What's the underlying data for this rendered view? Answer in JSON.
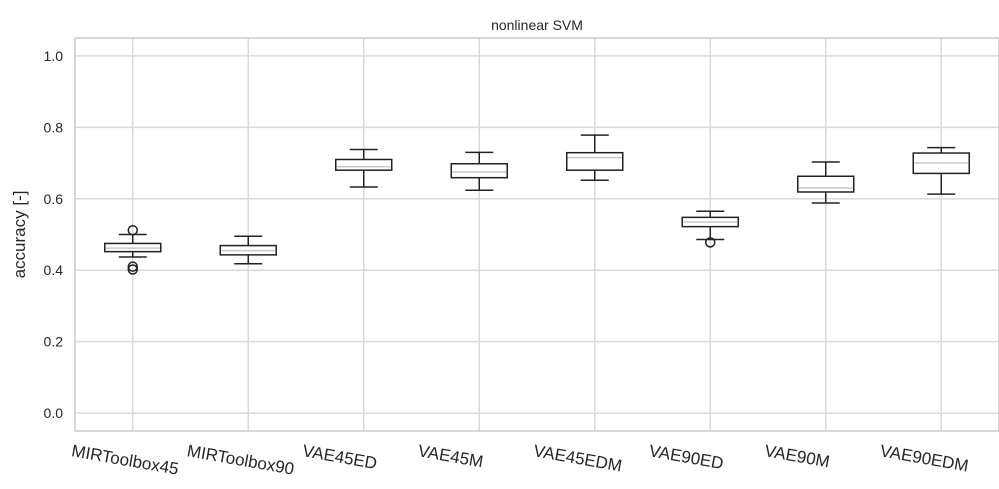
{
  "chart_data": {
    "type": "box",
    "title": "nonlinear SVM",
    "xlabel": "",
    "ylabel": "accuracy [-]",
    "ylim": [
      -0.05,
      1.05
    ],
    "yticks": [
      0.0,
      0.2,
      0.4,
      0.6,
      0.8,
      1.0
    ],
    "ytick_labels": [
      "0.0",
      "0.2",
      "0.4",
      "0.6",
      "0.8",
      "1.0"
    ],
    "grid": true,
    "categories": [
      "MIRToolbox45",
      "MIRToolbox90",
      "VAE45ED",
      "VAE45M",
      "VAE45EDM",
      "VAE90ED",
      "VAE90M",
      "VAE90EDM"
    ],
    "boxes": [
      {
        "min": 0.437,
        "q1": 0.452,
        "median": 0.462,
        "q3": 0.475,
        "max": 0.5,
        "outliers": [
          0.512,
          0.41,
          0.402
        ]
      },
      {
        "min": 0.418,
        "q1": 0.443,
        "median": 0.455,
        "q3": 0.469,
        "max": 0.495,
        "outliers": []
      },
      {
        "min": 0.633,
        "q1": 0.68,
        "median": 0.69,
        "q3": 0.71,
        "max": 0.738,
        "outliers": []
      },
      {
        "min": 0.624,
        "q1": 0.659,
        "median": 0.675,
        "q3": 0.698,
        "max": 0.73,
        "outliers": []
      },
      {
        "min": 0.652,
        "q1": 0.68,
        "median": 0.715,
        "q3": 0.729,
        "max": 0.778,
        "outliers": []
      },
      {
        "min": 0.486,
        "q1": 0.522,
        "median": 0.535,
        "q3": 0.548,
        "max": 0.565,
        "outliers": [
          0.478
        ]
      },
      {
        "min": 0.588,
        "q1": 0.619,
        "median": 0.63,
        "q3": 0.663,
        "max": 0.703,
        "outliers": []
      },
      {
        "min": 0.613,
        "q1": 0.671,
        "median": 0.7,
        "q3": 0.728,
        "max": 0.743,
        "outliers": []
      }
    ],
    "colors": {
      "box": "#222222",
      "median": "#c8c8c8",
      "grid": "#d9d9d9",
      "frame": "#cccccc"
    }
  }
}
